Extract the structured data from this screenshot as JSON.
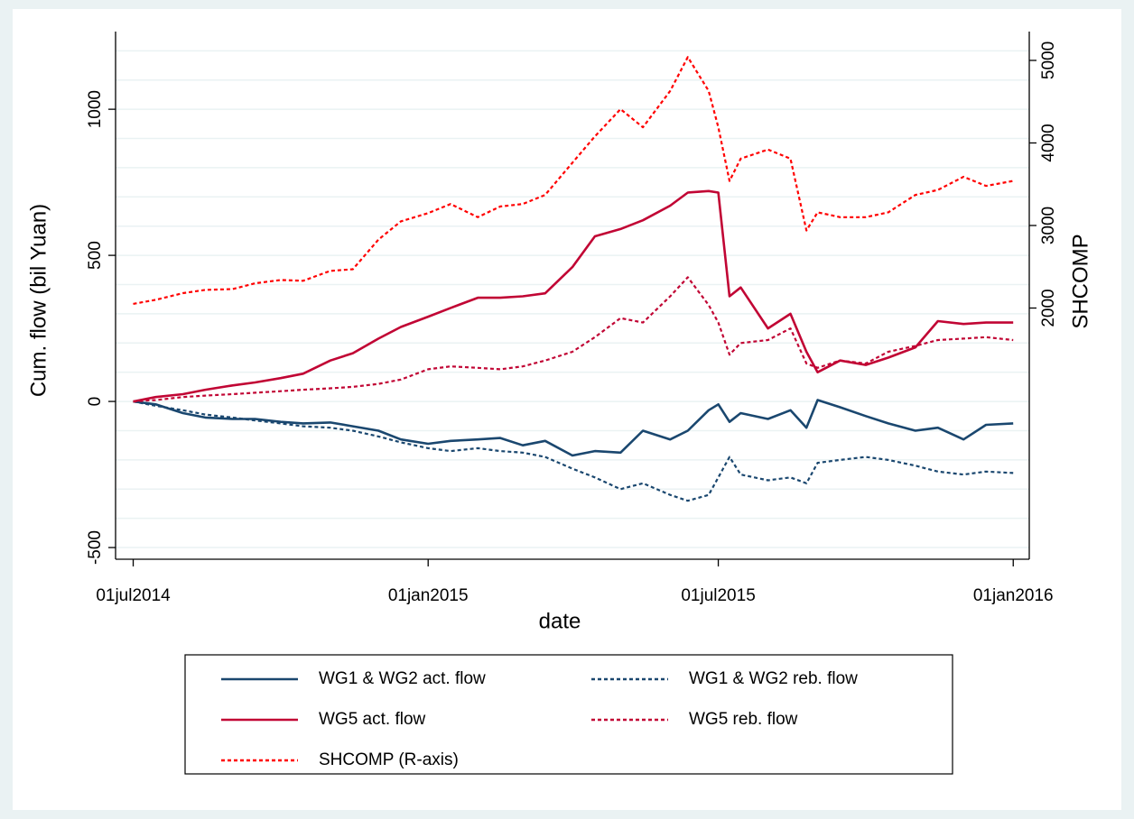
{
  "chart_data": {
    "type": "line",
    "xlabel": "date",
    "ylabel": "Cum. flow (bil Yuan)",
    "y2label": "SHCOMP",
    "x": [
      "2014-07-01",
      "2014-07-15",
      "2014-08-01",
      "2014-08-15",
      "2014-09-01",
      "2014-09-15",
      "2014-10-01",
      "2014-10-15",
      "2014-11-01",
      "2014-11-15",
      "2014-12-01",
      "2014-12-15",
      "2015-01-01",
      "2015-01-15",
      "2015-02-01",
      "2015-02-15",
      "2015-03-01",
      "2015-03-15",
      "2015-04-01",
      "2015-04-15",
      "2015-05-01",
      "2015-05-15",
      "2015-06-01",
      "2015-06-12",
      "2015-06-25",
      "2015-07-01",
      "2015-07-08",
      "2015-07-15",
      "2015-08-01",
      "2015-08-15",
      "2015-08-25",
      "2015-09-01",
      "2015-09-15",
      "2015-10-01",
      "2015-10-15",
      "2015-11-01",
      "2015-11-15",
      "2015-12-01",
      "2015-12-15",
      "2016-01-01"
    ],
    "series": [
      {
        "name": "WG1 & WG2 act. flow",
        "color": "#1a476f",
        "dashed": false,
        "values": [
          0,
          -10,
          -40,
          -55,
          -60,
          -60,
          -70,
          -75,
          -72,
          -85,
          -100,
          -130,
          -145,
          -135,
          -130,
          -125,
          -150,
          -135,
          -185,
          -170,
          -175,
          -100,
          -130,
          -100,
          -30,
          -10,
          -70,
          -40,
          -60,
          -30,
          -90,
          5,
          -20,
          -50,
          -75,
          -100,
          -90,
          -130,
          -80,
          -75
        ]
      },
      {
        "name": "WG1 & WG2 reb. flow",
        "color": "#1a476f",
        "dashed": true,
        "values": [
          0,
          -15,
          -30,
          -45,
          -55,
          -65,
          -75,
          -85,
          -90,
          -100,
          -120,
          -140,
          -160,
          -170,
          -160,
          -170,
          -175,
          -190,
          -230,
          -260,
          -300,
          -280,
          -320,
          -340,
          -320,
          -260,
          -190,
          -250,
          -270,
          -260,
          -280,
          -210,
          -200,
          -190,
          -200,
          -220,
          -240,
          -250,
          -240,
          -245
        ]
      },
      {
        "name": "WG5 act. flow",
        "color": "#c10534",
        "dashed": false,
        "values": [
          0,
          15,
          25,
          40,
          55,
          65,
          80,
          95,
          140,
          165,
          215,
          255,
          290,
          320,
          355,
          355,
          360,
          370,
          460,
          565,
          590,
          620,
          670,
          715,
          720,
          715,
          360,
          390,
          250,
          300,
          170,
          100,
          140,
          125,
          150,
          185,
          275,
          265,
          270,
          270
        ]
      },
      {
        "name": "WG5 reb. flow",
        "color": "#c10534",
        "dashed": true,
        "values": [
          0,
          5,
          15,
          20,
          25,
          30,
          35,
          40,
          45,
          50,
          60,
          75,
          110,
          120,
          115,
          110,
          120,
          140,
          170,
          220,
          285,
          270,
          360,
          425,
          330,
          270,
          160,
          200,
          210,
          250,
          130,
          115,
          140,
          130,
          170,
          190,
          210,
          215,
          220,
          210
        ]
      },
      {
        "name": "SHCOMP (R-axis)",
        "color": "#ff0000",
        "dashed": true,
        "axis": "y2",
        "values": [
          2050,
          2100,
          2180,
          2220,
          2230,
          2300,
          2340,
          2330,
          2450,
          2470,
          2830,
          3050,
          3150,
          3260,
          3100,
          3230,
          3260,
          3370,
          3760,
          4080,
          4410,
          4190,
          4630,
          5040,
          4630,
          4190,
          3540,
          3810,
          3920,
          3810,
          2940,
          3160,
          3100,
          3100,
          3160,
          3370,
          3430,
          3590,
          3480,
          3540
        ]
      }
    ],
    "xlim": [
      "2014-06-20",
      "2016-01-11"
    ],
    "xticks": [
      {
        "value": "2014-07-01",
        "label": "01jul2014"
      },
      {
        "value": "2015-01-01",
        "label": "01jan2015"
      },
      {
        "value": "2015-07-01",
        "label": "01jul2015"
      },
      {
        "value": "2016-01-01",
        "label": "01jan2016"
      }
    ],
    "ylim": [
      -540,
      1235
    ],
    "yticks": [
      -500,
      0,
      500,
      1000
    ],
    "ygrid": [
      -500,
      -400,
      -300,
      -200,
      -100,
      0,
      100,
      200,
      300,
      400,
      500,
      600,
      700,
      800,
      900,
      1000,
      1100,
      1200
    ],
    "y2lim": [
      -1043,
      5240
    ],
    "y2ticks": [
      2000,
      3000,
      4000,
      5000
    ],
    "legend": "bottom"
  }
}
